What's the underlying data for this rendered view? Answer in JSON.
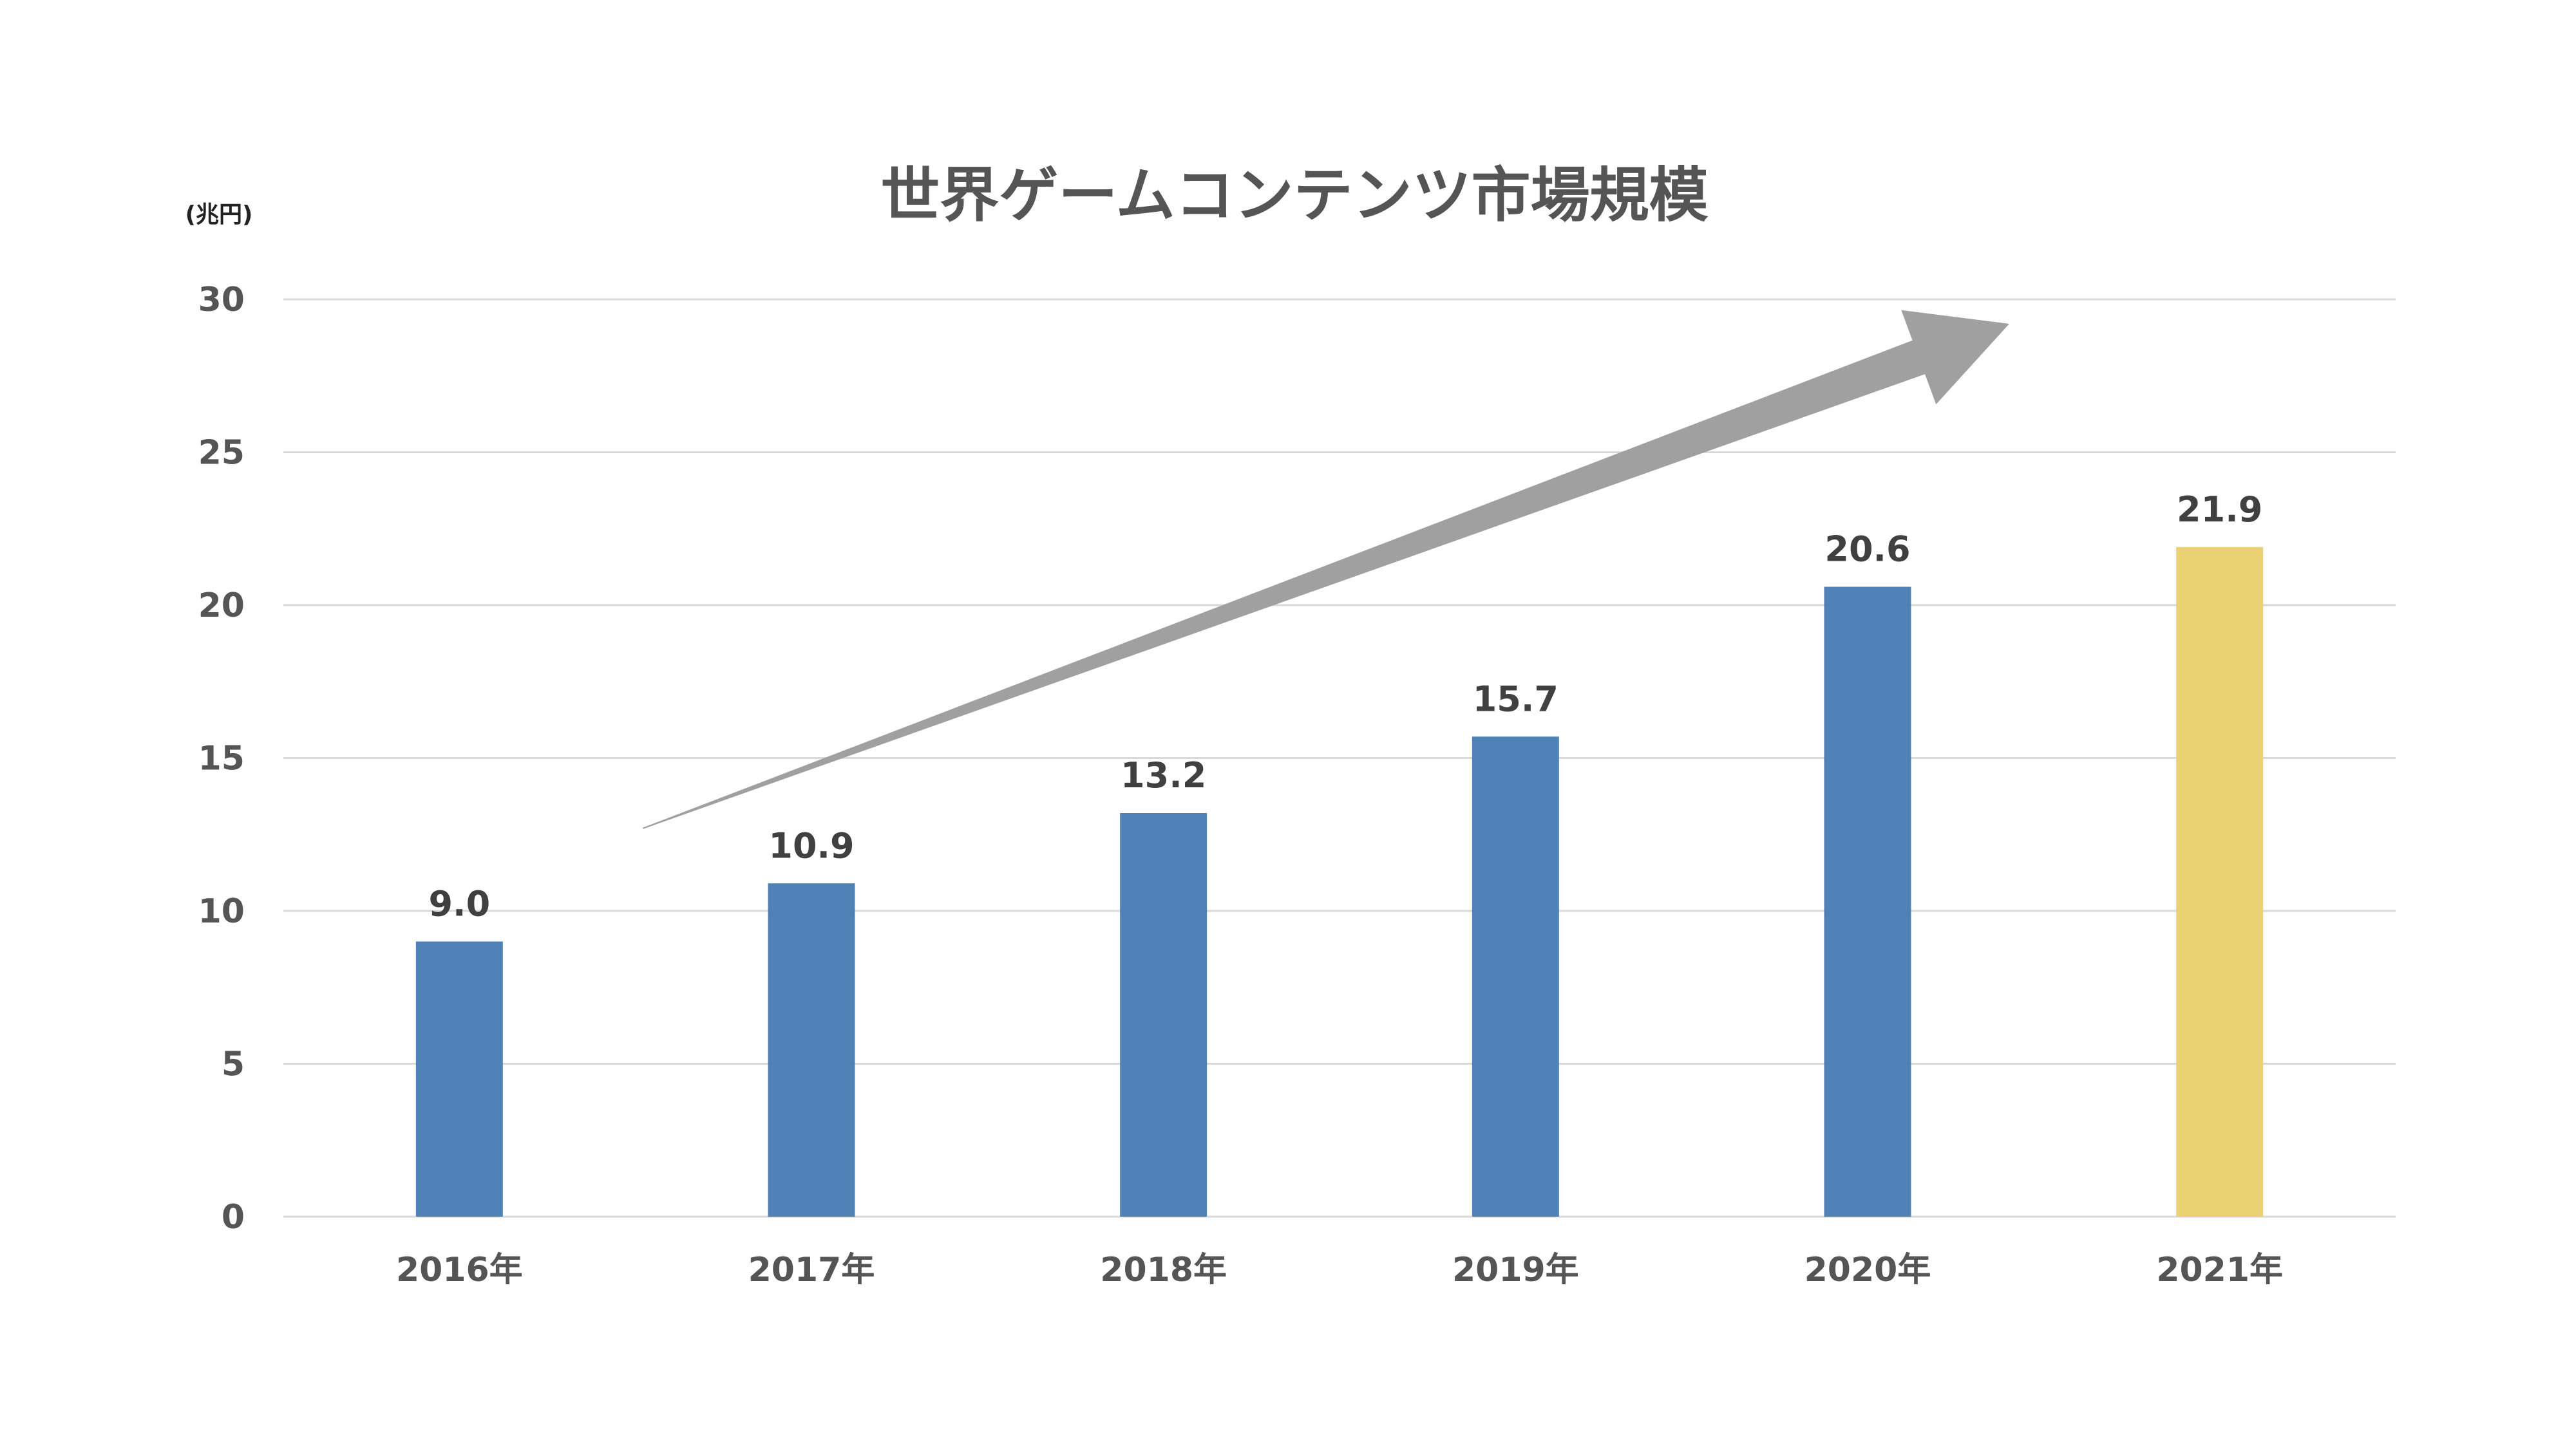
{
  "chart_data": {
    "type": "bar",
    "title": "世界ゲームコンテンツ市場規模",
    "unit_label": "(兆円)",
    "categories": [
      "2016年",
      "2017年",
      "2018年",
      "2019年",
      "2020年",
      "2021年"
    ],
    "values": [
      9.0,
      10.9,
      13.2,
      15.7,
      20.6,
      21.9
    ],
    "value_labels": [
      "9.0",
      "10.9",
      "13.2",
      "15.7",
      "20.6",
      "21.9"
    ],
    "bar_colors": [
      "#4f81b7",
      "#4f81b7",
      "#4f81b7",
      "#4f81b7",
      "#4f81b7",
      "#ead172"
    ],
    "ylim": [
      0,
      30
    ],
    "yticks": [
      0,
      5,
      10,
      15,
      20,
      25,
      30
    ],
    "grid": true,
    "legend": "none",
    "annotation": {
      "type": "trend-arrow",
      "color": "#a0a0a0"
    }
  }
}
